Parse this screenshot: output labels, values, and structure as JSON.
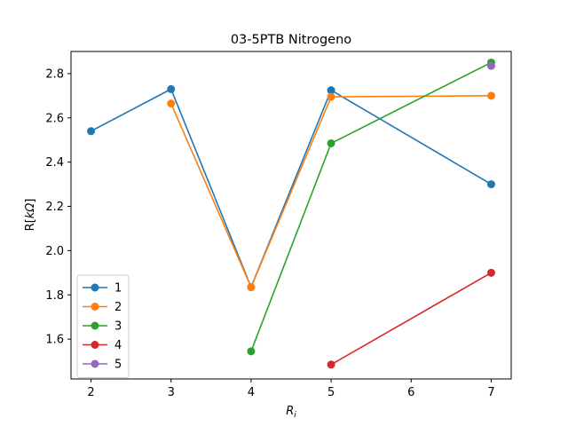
{
  "chart_data": {
    "type": "line",
    "title": "03-5PTB Nitrogeno",
    "xlabel_main": "R",
    "xlabel_sub": "i",
    "ylabel_prefix": "R[",
    "ylabel_italic": "kΩ",
    "ylabel_suffix": "]",
    "xlim": [
      1.75,
      7.25
    ],
    "ylim": [
      1.42,
      2.9
    ],
    "xticks": [
      2,
      3,
      4,
      5,
      6,
      7
    ],
    "yticks": [
      1.6,
      1.8,
      2.0,
      2.2,
      2.4,
      2.6,
      2.8
    ],
    "ytick_labels": [
      "1.6",
      "1.8",
      "2.0",
      "2.2",
      "2.4",
      "2.6",
      "2.8"
    ],
    "legend_position": "lower-left",
    "series": [
      {
        "name": "1",
        "color": "#1f77b4",
        "points": [
          [
            2,
            2.54
          ],
          [
            3,
            2.73
          ],
          [
            4,
            1.835
          ],
          [
            5,
            2.725
          ],
          [
            7,
            2.3
          ]
        ]
      },
      {
        "name": "2",
        "color": "#ff7f0e",
        "points": [
          [
            3,
            2.665
          ],
          [
            4,
            1.835
          ],
          [
            5,
            2.695
          ],
          [
            7,
            2.7
          ]
        ]
      },
      {
        "name": "3",
        "color": "#2ca02c",
        "points": [
          [
            4,
            1.545
          ],
          [
            5,
            2.485
          ],
          [
            7,
            2.85
          ]
        ]
      },
      {
        "name": "4",
        "color": "#d62728",
        "points": [
          [
            5,
            1.485
          ],
          [
            7,
            1.9
          ]
        ]
      },
      {
        "name": "5",
        "color": "#9467bd",
        "points": [
          [
            7,
            2.835
          ]
        ]
      }
    ]
  }
}
